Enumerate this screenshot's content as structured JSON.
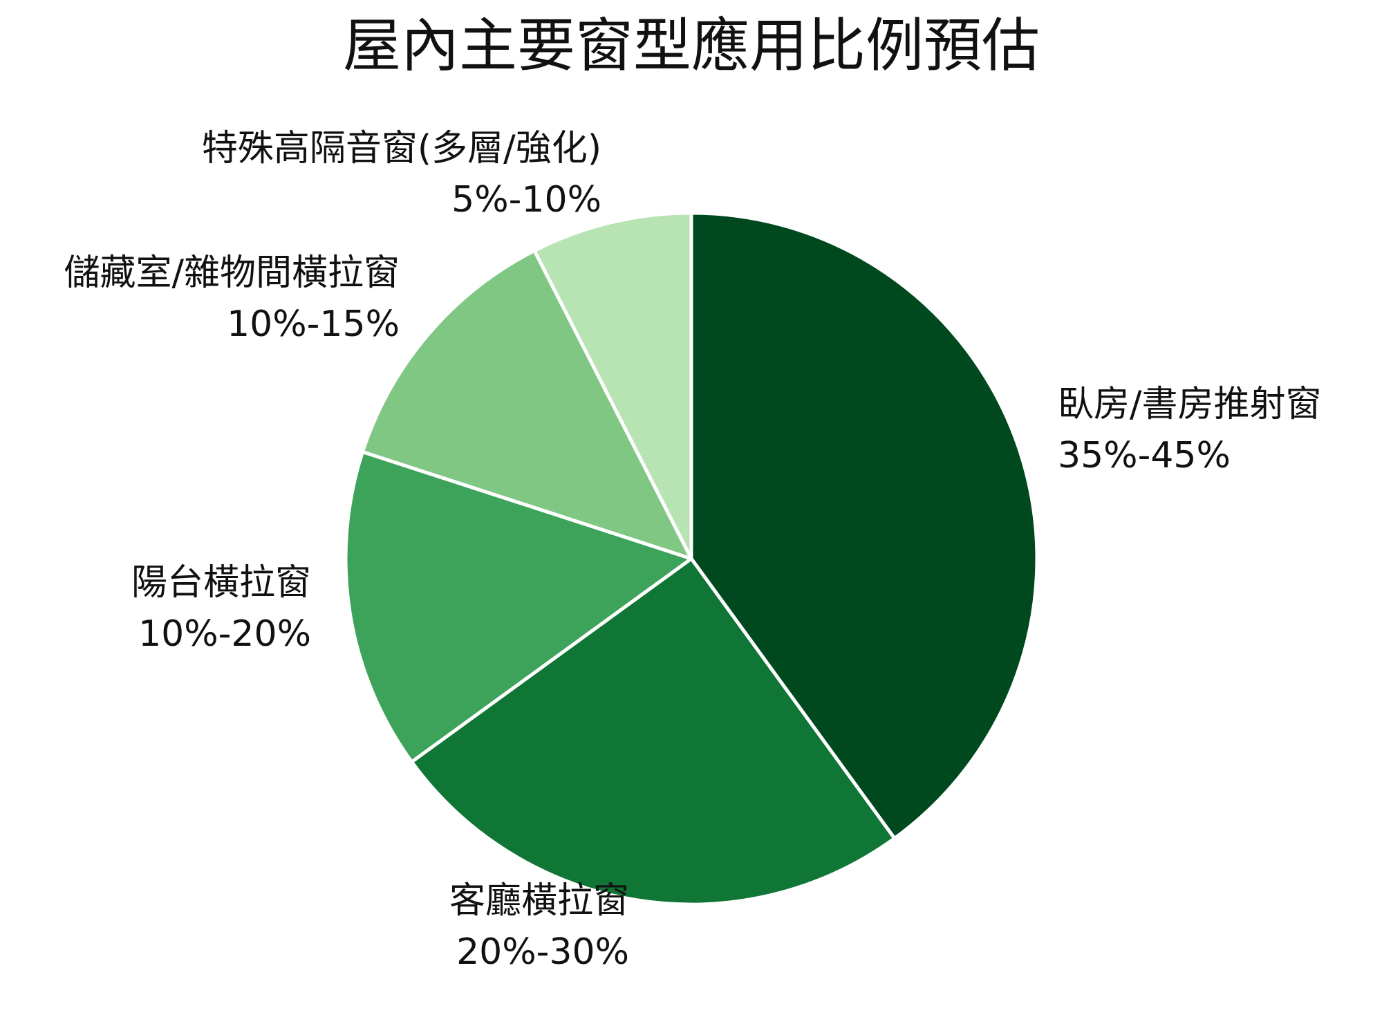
{
  "chart_data": {
    "type": "pie",
    "title": "屋內主要窗型應用比例預估",
    "colors": [
      "#00491e",
      "#0f7636",
      "#3ea35a",
      "#81c784",
      "#b8e3b3"
    ],
    "slice_border_color": "#ffffff",
    "slices": [
      {
        "label": "臥房/書房推射窗",
        "range": "35%-45%",
        "value": 40
      },
      {
        "label": "客廳橫拉窗",
        "range": "20%-30%",
        "value": 25
      },
      {
        "label": "陽台橫拉窗",
        "range": "10%-20%",
        "value": 15
      },
      {
        "label": "儲藏室/雜物間橫拉窗",
        "range": "10%-15%",
        "value": 12.5
      },
      {
        "label": "特殊高隔音窗(多層/強化)",
        "range": "5%-10%",
        "value": 7.5
      }
    ]
  }
}
